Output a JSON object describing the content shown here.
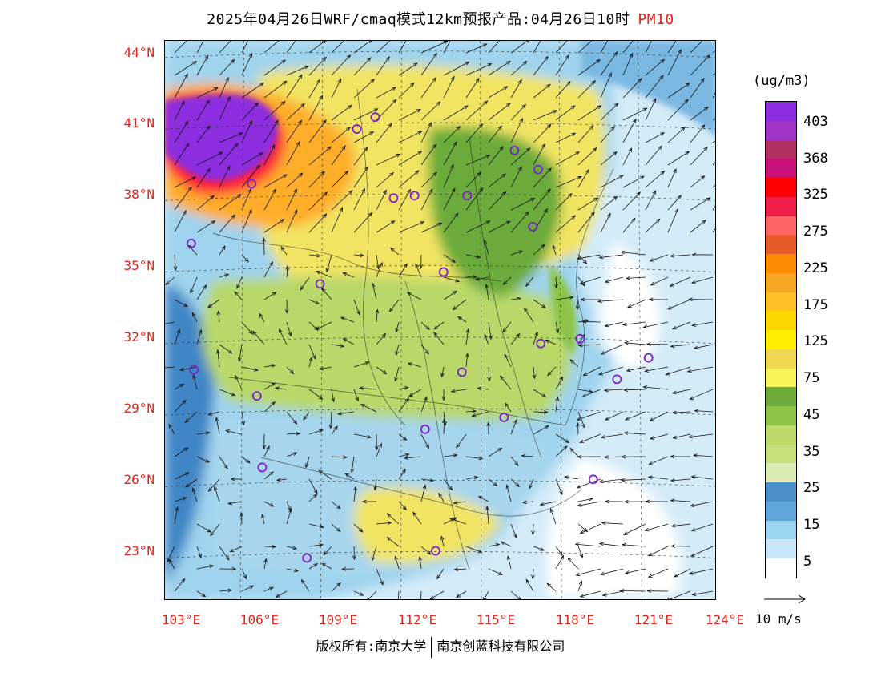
{
  "title": {
    "main": "2025年04月26日WRF/cmaq模式12km预报产品:04月26日10时",
    "pollutant": "PM10"
  },
  "map": {
    "lat_ticks": [
      "44°N",
      "41°N",
      "38°N",
      "35°N",
      "32°N",
      "29°N",
      "26°N",
      "23°N"
    ],
    "lon_ticks": [
      "103°E",
      "106°E",
      "109°E",
      "112°E",
      "115°E",
      "118°E",
      "121°E",
      "124°E"
    ],
    "lat_range": [
      21,
      44.5
    ],
    "lon_range": [
      103,
      124
    ],
    "sea_color": "#cfe9f7",
    "city_marker_color": "#7b22c8"
  },
  "colorbar": {
    "unit": "(ug/m3)",
    "labels": [
      "403",
      "368",
      "325",
      "275",
      "225",
      "175",
      "125",
      "75",
      "45",
      "35",
      "25",
      "15",
      "5"
    ],
    "colors": [
      "#8c2ee0",
      "#a035c8",
      "#b03060",
      "#c8127a",
      "#ff0000",
      "#f01e4a",
      "#ff6464",
      "#e85a28",
      "#ff8c00",
      "#f5a623",
      "#ffc125",
      "#ffd700",
      "#ffee00",
      "#f0d850",
      "#f5f55a",
      "#6aab3a",
      "#8dc446",
      "#bcd96a",
      "#c8e07c",
      "#dbecb4",
      "#4a8fc9",
      "#5fa6dc",
      "#9dd6f2",
      "#c7e6f7",
      "#ffffff"
    ]
  },
  "wind_reference": {
    "label": "10 m/s"
  },
  "footer": {
    "copyright": "版权所有:南京大学",
    "company": "南京创蓝科技有限公司"
  }
}
